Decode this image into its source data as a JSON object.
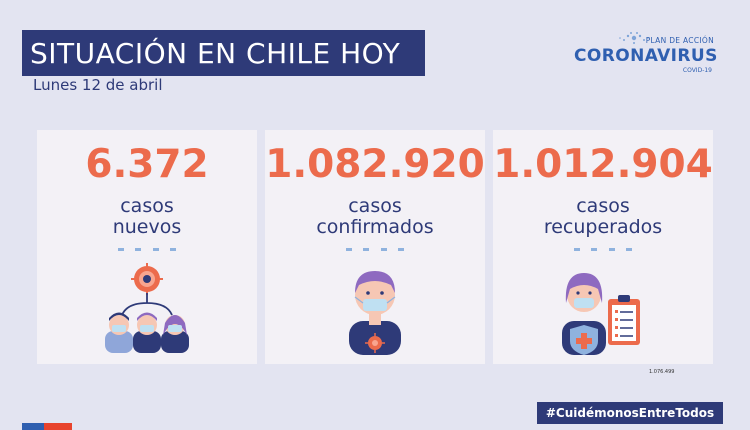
{
  "header": {
    "title": "SITUACIÓN EN CHILE HOY",
    "date": "Lunes 12 de abril"
  },
  "logo": {
    "plan": "PLAN DE ACCIÓN",
    "name": "CORONAVIRUS",
    "sub": "COVID-19"
  },
  "cards": [
    {
      "value": "6.372",
      "line1": "casos",
      "line2": "nuevos",
      "icon": "contagion-icon"
    },
    {
      "value": "1.082.920",
      "line1": "casos",
      "line2": "confirmados",
      "icon": "masked-person-icon"
    },
    {
      "value": "1.012.904",
      "line1": "casos",
      "line2": "recuperados",
      "icon": "recovered-person-icon"
    }
  ],
  "footnote": "1.076.499",
  "hashtag": "#CuidémonosEntreTodos",
  "colors": {
    "accent": "#ec6b4c",
    "navy": "#2e3a78",
    "background": "#e3e4f1",
    "card": "#f3f1f6"
  }
}
